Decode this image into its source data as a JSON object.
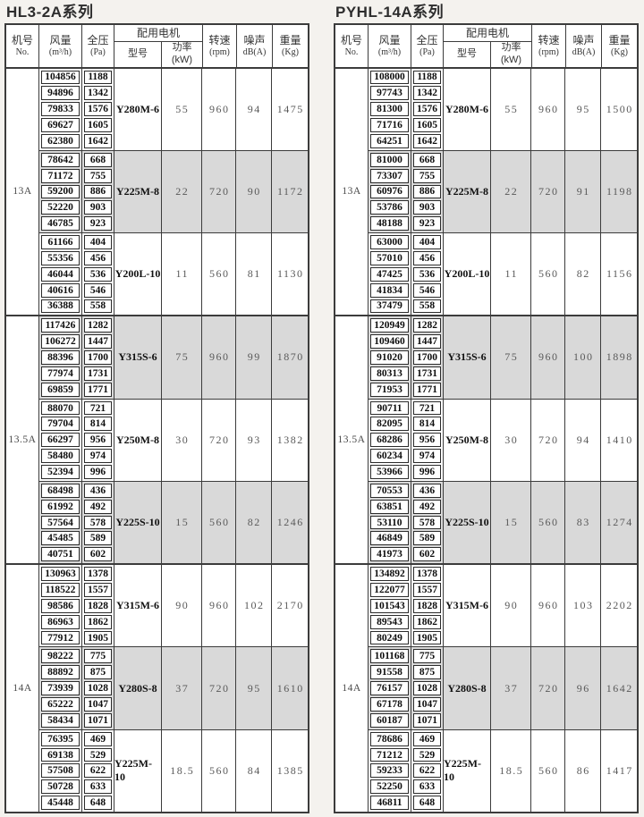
{
  "colors": {
    "band_gray": "#d9d9d9",
    "cell_white": "#ffffff",
    "line": "#3c3c3c"
  },
  "columns": {
    "no": [
      "机号",
      "No."
    ],
    "flow": [
      "风量",
      "(m³/h)"
    ],
    "pres": [
      "全压",
      "(Pa)"
    ],
    "motor": "配用电机",
    "model": "型号",
    "power": "功率(kW)",
    "rpm": [
      "转速",
      "(rpm)"
    ],
    "noise": [
      "噪声",
      "dB(A)"
    ],
    "weight": [
      "重量",
      "(Kg)"
    ]
  },
  "tables": [
    {
      "title": "HL3-2A系列",
      "sections": [
        {
          "model": "13A",
          "groups": [
            {
              "shaded": false,
              "flow": [
                "104856",
                "94896",
                "79833",
                "69627",
                "62380"
              ],
              "pressure": [
                "1188",
                "1342",
                "1576",
                "1605",
                "1642"
              ],
              "motor": "Y280M-6",
              "power": "55",
              "rpm": "960",
              "noise": "94",
              "weight": "1475"
            },
            {
              "shaded": true,
              "flow": [
                "78642",
                "71172",
                "59200",
                "52220",
                "46785"
              ],
              "pressure": [
                "668",
                "755",
                "886",
                "903",
                "923"
              ],
              "motor": "Y225M-8",
              "power": "22",
              "rpm": "720",
              "noise": "90",
              "weight": "1172"
            },
            {
              "shaded": false,
              "flow": [
                "61166",
                "55356",
                "46044",
                "40616",
                "36388"
              ],
              "pressure": [
                "404",
                "456",
                "536",
                "546",
                "558"
              ],
              "motor": "Y200L-10",
              "power": "11",
              "rpm": "560",
              "noise": "81",
              "weight": "1130"
            }
          ]
        },
        {
          "model": "13.5A",
          "groups": [
            {
              "shaded": true,
              "flow": [
                "117426",
                "106272",
                "88396",
                "77974",
                "69859"
              ],
              "pressure": [
                "1282",
                "1447",
                "1700",
                "1731",
                "1771"
              ],
              "motor": "Y315S-6",
              "power": "75",
              "rpm": "960",
              "noise": "99",
              "weight": "1870"
            },
            {
              "shaded": false,
              "flow": [
                "88070",
                "79704",
                "66297",
                "58480",
                "52394"
              ],
              "pressure": [
                "721",
                "814",
                "956",
                "974",
                "996"
              ],
              "motor": "Y250M-8",
              "power": "30",
              "rpm": "720",
              "noise": "93",
              "weight": "1382"
            },
            {
              "shaded": true,
              "flow": [
                "68498",
                "61992",
                "57564",
                "45485",
                "40751"
              ],
              "pressure": [
                "436",
                "492",
                "578",
                "589",
                "602"
              ],
              "motor": "Y225S-10",
              "power": "15",
              "rpm": "560",
              "noise": "82",
              "weight": "1246"
            }
          ]
        },
        {
          "model": "14A",
          "groups": [
            {
              "shaded": false,
              "flow": [
                "130963",
                "118522",
                "98586",
                "86963",
                "77912"
              ],
              "pressure": [
                "1378",
                "1557",
                "1828",
                "1862",
                "1905"
              ],
              "motor": "Y315M-6",
              "power": "90",
              "rpm": "960",
              "noise": "102",
              "weight": "2170"
            },
            {
              "shaded": true,
              "flow": [
                "98222",
                "88892",
                "73939",
                "65222",
                "58434"
              ],
              "pressure": [
                "775",
                "875",
                "1028",
                "1047",
                "1071"
              ],
              "motor": "Y280S-8",
              "power": "37",
              "rpm": "720",
              "noise": "95",
              "weight": "1610"
            },
            {
              "shaded": false,
              "flow": [
                "76395",
                "69138",
                "57508",
                "50728",
                "45448"
              ],
              "pressure": [
                "469",
                "529",
                "622",
                "633",
                "648"
              ],
              "motor": "Y225M-10",
              "power": "18.5",
              "rpm": "560",
              "noise": "84",
              "weight": "1385"
            }
          ]
        }
      ]
    },
    {
      "title": "PYHL-14A系列",
      "sections": [
        {
          "model": "13A",
          "groups": [
            {
              "shaded": false,
              "flow": [
                "108000",
                "97743",
                "81300",
                "71716",
                "64251"
              ],
              "pressure": [
                "1188",
                "1342",
                "1576",
                "1605",
                "1642"
              ],
              "motor": "Y280M-6",
              "power": "55",
              "rpm": "960",
              "noise": "95",
              "weight": "1500"
            },
            {
              "shaded": true,
              "flow": [
                "81000",
                "73307",
                "60976",
                "53786",
                "48188"
              ],
              "pressure": [
                "668",
                "755",
                "886",
                "903",
                "923"
              ],
              "motor": "Y225M-8",
              "power": "22",
              "rpm": "720",
              "noise": "91",
              "weight": "1198"
            },
            {
              "shaded": false,
              "flow": [
                "63000",
                "57010",
                "47425",
                "41834",
                "37479"
              ],
              "pressure": [
                "404",
                "456",
                "536",
                "546",
                "558"
              ],
              "motor": "Y200L-10",
              "power": "11",
              "rpm": "560",
              "noise": "82",
              "weight": "1156"
            }
          ]
        },
        {
          "model": "13.5A",
          "groups": [
            {
              "shaded": true,
              "flow": [
                "120949",
                "109460",
                "91020",
                "80313",
                "71953"
              ],
              "pressure": [
                "1282",
                "1447",
                "1700",
                "1731",
                "1771"
              ],
              "motor": "Y315S-6",
              "power": "75",
              "rpm": "960",
              "noise": "100",
              "weight": "1898"
            },
            {
              "shaded": false,
              "flow": [
                "90711",
                "82095",
                "68286",
                "60234",
                "53966"
              ],
              "pressure": [
                "721",
                "814",
                "956",
                "974",
                "996"
              ],
              "motor": "Y250M-8",
              "power": "30",
              "rpm": "720",
              "noise": "94",
              "weight": "1410"
            },
            {
              "shaded": true,
              "flow": [
                "70553",
                "63851",
                "53110",
                "46849",
                "41973"
              ],
              "pressure": [
                "436",
                "492",
                "578",
                "589",
                "602"
              ],
              "motor": "Y225S-10",
              "power": "15",
              "rpm": "560",
              "noise": "83",
              "weight": "1274"
            }
          ]
        },
        {
          "model": "14A",
          "groups": [
            {
              "shaded": false,
              "flow": [
                "134892",
                "122077",
                "101543",
                "89543",
                "80249"
              ],
              "pressure": [
                "1378",
                "1557",
                "1828",
                "1862",
                "1905"
              ],
              "motor": "Y315M-6",
              "power": "90",
              "rpm": "960",
              "noise": "103",
              "weight": "2202"
            },
            {
              "shaded": true,
              "flow": [
                "101168",
                "91558",
                "76157",
                "67178",
                "60187"
              ],
              "pressure": [
                "775",
                "875",
                "1028",
                "1047",
                "1071"
              ],
              "motor": "Y280S-8",
              "power": "37",
              "rpm": "720",
              "noise": "96",
              "weight": "1642"
            },
            {
              "shaded": false,
              "flow": [
                "78686",
                "71212",
                "59233",
                "52250",
                "46811"
              ],
              "pressure": [
                "469",
                "529",
                "622",
                "633",
                "648"
              ],
              "motor": "Y225M-10",
              "power": "18.5",
              "rpm": "560",
              "noise": "86",
              "weight": "1417"
            }
          ]
        }
      ]
    }
  ]
}
